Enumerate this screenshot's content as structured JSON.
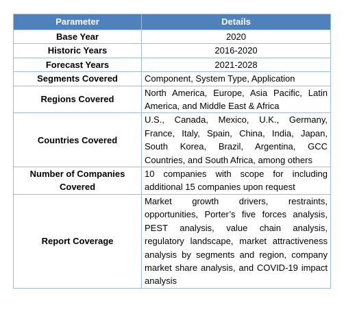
{
  "table": {
    "headers": [
      "Parameter",
      "Details"
    ],
    "rows": [
      {
        "parameter": "Base Year",
        "details": "2020"
      },
      {
        "parameter": "Historic Years",
        "details": "2016-2020"
      },
      {
        "parameter": "Forecast Years",
        "details": "2021-2028"
      },
      {
        "parameter": "Segments Covered",
        "details": "Component, System Type, Application"
      },
      {
        "parameter": "Regions Covered",
        "details": "North America, Europe, Asia Pacific, Latin America, and Middle East & Africa"
      },
      {
        "parameter": "Countries Covered",
        "details": "U.S., Canada, Mexico, U.K., Germany, France, Italy, Spain, China, India, Japan, South Korea, Brazil, Argentina, GCC Countries, and South Africa, among others"
      },
      {
        "parameter": "Number of Companies Covered",
        "details": "10 companies with scope for including additional 15 companies upon request"
      },
      {
        "parameter": "Report Coverage",
        "details": "Market growth drivers, restraints, opportunities, Porter’s five forces analysis, PEST analysis, value chain analysis, regulatory landscape, market attractiveness analysis by segments and region, company market share analysis, and COVID-19 impact analysis"
      }
    ]
  },
  "colors": {
    "header_background": "#4f81bd",
    "header_text": "#ffffff",
    "border": "#9bbbd8"
  }
}
